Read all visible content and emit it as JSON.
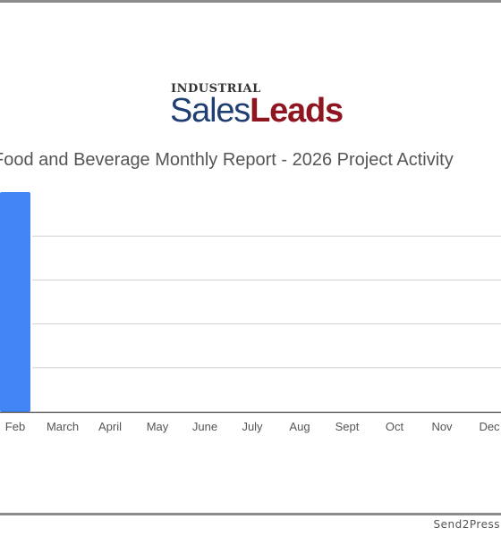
{
  "logo": {
    "top_word": "INDUSTRIAL",
    "word_sales": "Sales",
    "word_leads": "Leads"
  },
  "credit": "Send2Press",
  "colors": {
    "bar": "#4285f4",
    "grid": "#d0d0d0",
    "logo_blue": "#1f3f73",
    "logo_red": "#8f1520"
  },
  "chart_data": {
    "type": "bar",
    "title": "Food and Beverage Monthly Report - 2026 Project Activity",
    "categories": [
      "Feb",
      "March",
      "April",
      "May",
      "June",
      "July",
      "Aug",
      "Sept",
      "Oct",
      "Nov",
      "Dec"
    ],
    "values": [
      100,
      0,
      0,
      0,
      0,
      0,
      0,
      0,
      0,
      0,
      0
    ],
    "ylim": [
      0,
      100
    ],
    "grid": true,
    "legend": "none"
  }
}
